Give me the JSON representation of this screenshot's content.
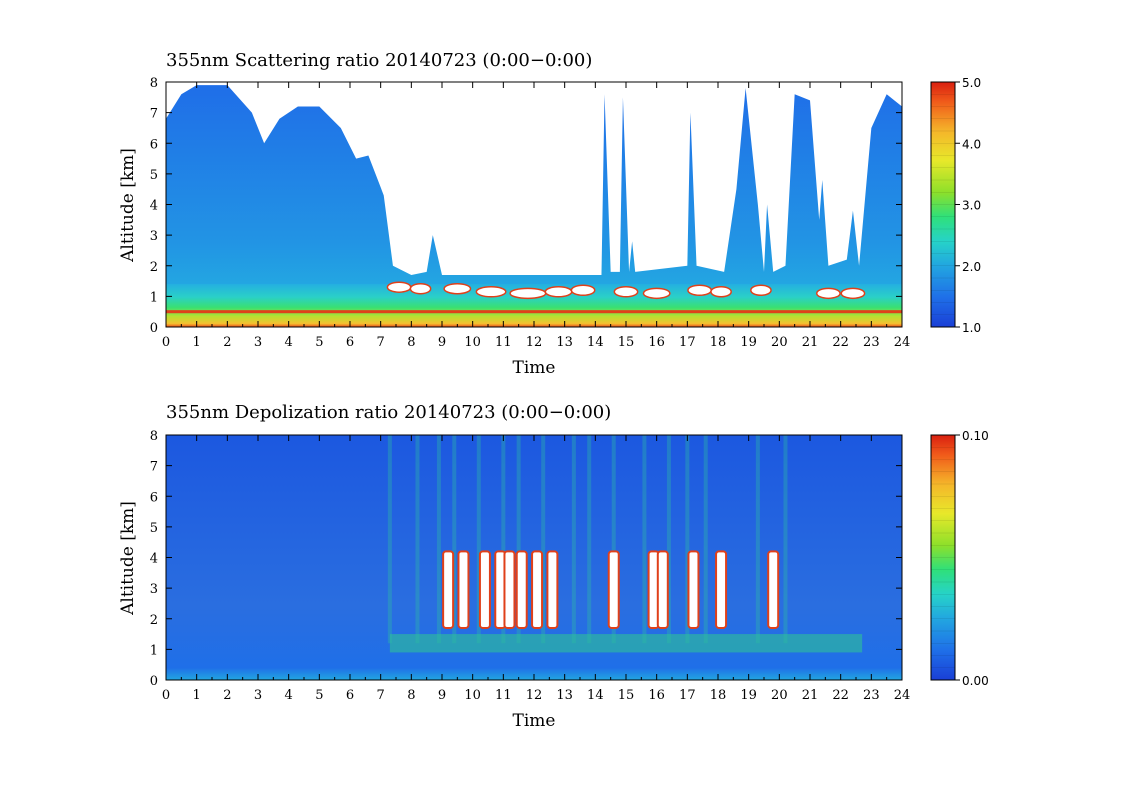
{
  "chart_data": [
    {
      "type": "heatmap",
      "title": "355nm Scattering ratio  20140723 (0:00−0:00)",
      "xlabel": "Time",
      "ylabel": "Altitude [km]",
      "xlim": [
        0,
        24
      ],
      "ylim": [
        0,
        8
      ],
      "x_ticks": [
        "0",
        "1",
        "2",
        "3",
        "4",
        "5",
        "6",
        "7",
        "8",
        "9",
        "10",
        "11",
        "12",
        "13",
        "14",
        "15",
        "16",
        "17",
        "18",
        "19",
        "20",
        "21",
        "22",
        "23",
        "24"
      ],
      "y_ticks": [
        "0",
        "1",
        "2",
        "3",
        "4",
        "5",
        "6",
        "7",
        "8"
      ],
      "colorbar": {
        "min": 1.0,
        "max": 5.0,
        "ticks": [
          "1.0",
          "2.0",
          "3.0",
          "4.0",
          "5.0"
        ]
      },
      "high_values_color": "#ffffff",
      "description_values": {
        "surface_layer_top_km": 0.5,
        "boundary_layer_top_km": 1.3,
        "cloud_layer_km": [
          1.0,
          1.7
        ],
        "high_cloud_columns_hour": [
          14.3,
          14.9,
          15.2,
          17.0,
          19.5,
          21.3,
          22.4
        ]
      }
    },
    {
      "type": "heatmap",
      "title": "355nm Depolization ratio  20140723 (0:00−0:00)",
      "xlabel": "Time",
      "ylabel": "Altitude [km]",
      "xlim": [
        0,
        24
      ],
      "ylim": [
        0,
        8
      ],
      "x_ticks": [
        "0",
        "1",
        "2",
        "3",
        "4",
        "5",
        "6",
        "7",
        "8",
        "9",
        "10",
        "11",
        "12",
        "13",
        "14",
        "15",
        "16",
        "17",
        "18",
        "19",
        "20",
        "21",
        "22",
        "23",
        "24"
      ],
      "y_ticks": [
        "0",
        "1",
        "2",
        "3",
        "4",
        "5",
        "6",
        "7",
        "8"
      ],
      "colorbar": {
        "min": 0.0,
        "max": 0.1,
        "ticks": [
          "0.00",
          "0.10"
        ]
      },
      "high_values_color": "#ffffff",
      "ice_cloud_columns_hour": [
        9.2,
        9.7,
        10.4,
        10.9,
        11.2,
        11.6,
        12.1,
        12.6,
        14.6,
        15.9,
        16.2,
        17.2,
        18.1,
        19.8
      ]
    }
  ],
  "colors": {
    "scale": [
      "#1a3fd6",
      "#1f6fe8",
      "#22a6e0",
      "#26d3c8",
      "#2fe07a",
      "#8ee02a",
      "#e8e82a",
      "#f5b52a",
      "#f05a1a",
      "#d92010"
    ],
    "background": "#ffffff",
    "frame": "#000000"
  }
}
